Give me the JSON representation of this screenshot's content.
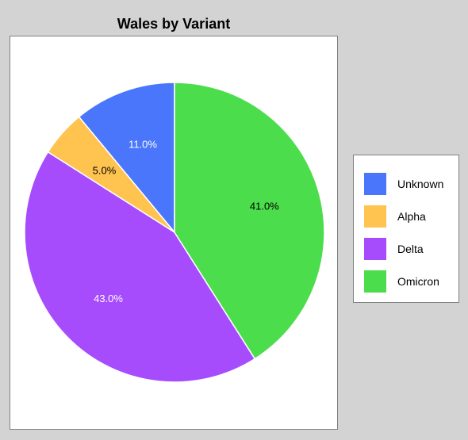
{
  "chart_data": {
    "type": "pie",
    "title": "Wales by Variant",
    "categories": [
      "Unknown",
      "Alpha",
      "Delta",
      "Omicron"
    ],
    "values": [
      11.0,
      5.0,
      43.0,
      41.0
    ],
    "value_labels": [
      "11.0%",
      "5.0%",
      "43.0%",
      "41.0%"
    ],
    "colors": [
      "#4a76fb",
      "#ffc34f",
      "#a64cfc",
      "#4cdd4c"
    ],
    "label_colors": [
      "#ffffff",
      "#000000",
      "#ffffff",
      "#000000"
    ],
    "start": "12 o'clock",
    "direction": "counterclockwise",
    "legend_position": "right"
  }
}
